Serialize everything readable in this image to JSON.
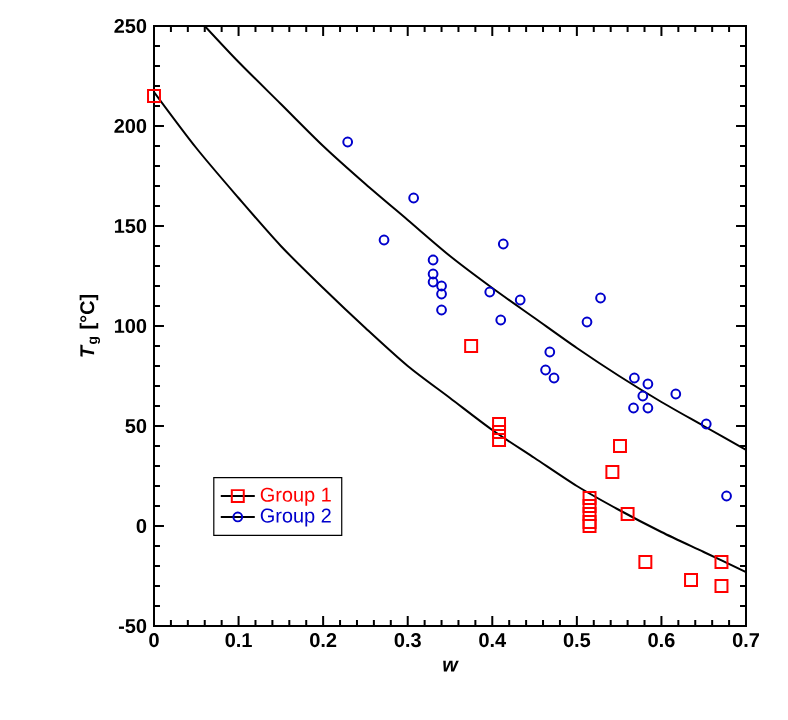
{
  "chart_data": {
    "type": "scatter",
    "xlabel": "w",
    "ylabel": "*T*$_{g}$ [°C]",
    "xlim": [
      0,
      0.7
    ],
    "ylim": [
      -50,
      250
    ],
    "xticks": [
      0,
      0.1,
      0.2,
      0.3,
      0.4,
      0.5,
      0.6,
      0.7
    ],
    "yticks": [
      -50,
      0,
      50,
      100,
      150,
      200,
      250
    ],
    "grid": false,
    "legend": "bottom left",
    "series": [
      {
        "name": "Group 1",
        "color": "#ff0000",
        "marker": "square",
        "x": [
          0,
          0.375,
          0.408,
          0.408,
          0.408,
          0.551,
          0.542,
          0.515,
          0.515,
          0.515,
          0.515,
          0.515,
          0.56,
          0.581,
          0.635,
          0.671,
          0.671
        ],
        "values": [
          215,
          90,
          51,
          47,
          43,
          40,
          27,
          14,
          10,
          6,
          2,
          0,
          6,
          -18,
          -27,
          -18,
          -30
        ]
      },
      {
        "name": "Group 2",
        "color": "#0000cc",
        "marker": "circle",
        "x": [
          0.229,
          0.307,
          0.272,
          0.33,
          0.33,
          0.33,
          0.34,
          0.34,
          0.34,
          0.397,
          0.413,
          0.433,
          0.41,
          0.468,
          0.512,
          0.528,
          0.463,
          0.473,
          0.568,
          0.584,
          0.578,
          0.567,
          0.584,
          0.617,
          0.653,
          0.677
        ],
        "values": [
          192,
          164,
          143,
          133,
          126,
          122,
          120,
          116,
          108,
          117,
          141,
          113,
          103,
          87,
          102,
          114,
          78,
          74,
          74,
          71,
          65,
          59,
          59,
          66,
          51,
          15
        ]
      },
      {
        "type": "line",
        "color": "#000000",
        "marker": "none",
        "x": [
          0,
          0.05,
          0.1,
          0.15,
          0.2,
          0.25,
          0.3,
          0.35,
          0.4,
          0.45,
          0.5,
          0.55,
          0.6,
          0.65,
          0.7
        ],
        "values": [
          217,
          189,
          164,
          140,
          119,
          99,
          80,
          64,
          48,
          34,
          20,
          8,
          -3,
          -13,
          -23
        ]
      },
      {
        "type": "line",
        "color": "#000000",
        "marker": "none",
        "x": [
          0.06,
          0.1,
          0.15,
          0.2,
          0.25,
          0.3,
          0.35,
          0.4,
          0.45,
          0.5,
          0.55,
          0.6,
          0.65,
          0.7
        ],
        "values": [
          250,
          232,
          211,
          190,
          171,
          153,
          135,
          119,
          104,
          89,
          75,
          62,
          50,
          38
        ]
      }
    ]
  }
}
